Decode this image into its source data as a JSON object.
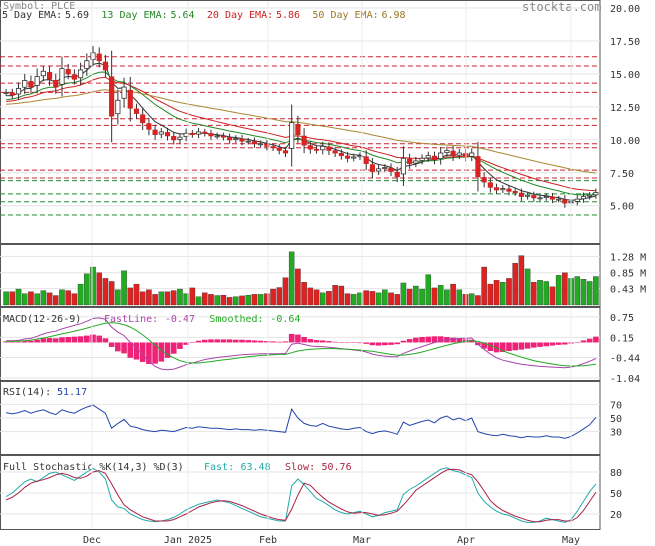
{
  "chart_data": [
    {
      "type": "candlestick",
      "panel": "price",
      "symbol_label": "Symbol: PLCE",
      "watermark": "stockta.com",
      "ema_legend": [
        {
          "label": "5 Day EMA:",
          "value": "5.69",
          "color": "#333333"
        },
        {
          "label": "13 Day EMA:",
          "value": "5.64",
          "color": "#228822"
        },
        {
          "label": "20 Day EMA:",
          "value": "5.86",
          "color": "#cc2222"
        },
        {
          "label": "50 Day EMA:",
          "value": "6.98",
          "color": "#997722"
        }
      ],
      "ylim": [
        2.4,
        20.0
      ],
      "y_ticks": [
        "20.00",
        "17.50",
        "15.00",
        "12.50",
        "10.00",
        "7.50",
        "5.00"
      ],
      "resistance_levels": [
        16.3,
        15.6,
        14.3,
        13.6,
        11.6,
        11.1,
        9.7,
        9.4,
        7.7,
        7.1
      ],
      "support_levels": [
        6.9,
        5.9,
        5.3,
        4.3
      ],
      "x_ticks": [
        "Dec",
        "Jan 2025",
        "Feb",
        "Mar",
        "Apr",
        "May"
      ],
      "close": [
        13.6,
        13.4,
        13.9,
        14.5,
        14.0,
        14.8,
        15.2,
        14.6,
        14.0,
        15.4,
        15.0,
        14.6,
        15.3,
        16.0,
        16.6,
        16.0,
        15.3,
        11.8,
        13.0,
        14.0,
        12.4,
        12.0,
        11.3,
        10.8,
        10.4,
        10.6,
        10.3,
        10.0,
        10.2,
        10.5,
        10.4,
        10.6,
        10.5,
        10.3,
        10.3,
        10.2,
        10.0,
        10.1,
        9.9,
        9.9,
        9.7,
        9.7,
        9.5,
        9.4,
        9.2,
        9.0,
        11.3,
        10.4,
        9.6,
        9.3,
        9.2,
        9.5,
        9.2,
        9.0,
        8.8,
        8.6,
        8.7,
        8.8,
        8.2,
        7.6,
        7.8,
        7.9,
        7.6,
        7.2,
        8.6,
        8.2,
        8.4,
        8.6,
        8.8,
        8.5,
        9.0,
        9.2,
        8.8,
        9.0,
        8.7,
        9.0,
        7.2,
        6.8,
        6.4,
        6.2,
        6.3,
        6.1,
        6.0,
        5.7,
        5.8,
        5.6,
        5.6,
        5.7,
        5.5,
        5.5,
        5.2,
        5.3,
        5.5,
        5.7,
        5.8,
        6.0
      ]
    },
    {
      "type": "bar",
      "panel": "volume",
      "y_ticks": [
        "1.28 M",
        "0.85 M",
        "0.43 M"
      ],
      "ylim": [
        0,
        1.5
      ],
      "values": [
        0.35,
        0.35,
        0.42,
        0.3,
        0.35,
        0.3,
        0.38,
        0.32,
        0.25,
        0.4,
        0.38,
        0.3,
        0.55,
        0.82,
        1.0,
        0.85,
        0.7,
        0.62,
        0.4,
        0.9,
        0.45,
        0.55,
        0.35,
        0.4,
        0.28,
        0.35,
        0.35,
        0.38,
        0.42,
        0.3,
        0.45,
        0.22,
        0.32,
        0.28,
        0.25,
        0.26,
        0.2,
        0.22,
        0.24,
        0.26,
        0.28,
        0.28,
        0.3,
        0.42,
        0.46,
        0.72,
        1.4,
        0.95,
        0.6,
        0.45,
        0.4,
        0.32,
        0.36,
        0.52,
        0.5,
        0.3,
        0.28,
        0.32,
        0.38,
        0.36,
        0.32,
        0.4,
        0.32,
        0.28,
        0.58,
        0.42,
        0.5,
        0.42,
        0.8,
        0.45,
        0.52,
        0.4,
        0.55,
        0.4,
        0.28,
        0.3,
        0.25,
        1.0,
        0.55,
        0.65,
        0.6,
        0.7,
        1.1,
        1.3,
        0.95,
        0.6,
        0.65,
        0.62,
        0.48,
        0.78,
        0.85,
        0.7,
        0.75,
        0.68,
        0.62,
        0.75
      ]
    },
    {
      "type": "line",
      "panel": "macd",
      "title": "MACD(12-26-9)",
      "legend": [
        {
          "label": "FastLine:",
          "value": "-0.47",
          "color": "#aa44aa"
        },
        {
          "label": "Smoothed:",
          "value": "-0.64",
          "color": "#22aa22"
        }
      ],
      "y_ticks": [
        "0.75",
        "0.15",
        "-0.44",
        "-1.04"
      ],
      "ylim": [
        -1.04,
        0.95
      ],
      "fast": [
        0.05,
        0.05,
        0.06,
        0.1,
        0.12,
        0.18,
        0.25,
        0.3,
        0.33,
        0.4,
        0.45,
        0.5,
        0.55,
        0.62,
        0.7,
        0.72,
        0.68,
        0.45,
        0.3,
        0.2,
        0.0,
        -0.15,
        -0.35,
        -0.55,
        -0.7,
        -0.78,
        -0.8,
        -0.78,
        -0.72,
        -0.65,
        -0.6,
        -0.55,
        -0.5,
        -0.47,
        -0.44,
        -0.42,
        -0.4,
        -0.38,
        -0.36,
        -0.35,
        -0.34,
        -0.33,
        -0.33,
        -0.33,
        -0.33,
        -0.32,
        -0.05,
        -0.02,
        -0.06,
        -0.1,
        -0.12,
        -0.12,
        -0.14,
        -0.16,
        -0.18,
        -0.2,
        -0.22,
        -0.24,
        -0.28,
        -0.34,
        -0.38,
        -0.4,
        -0.42,
        -0.42,
        -0.32,
        -0.25,
        -0.18,
        -0.12,
        -0.06,
        0.0,
        0.05,
        0.08,
        0.1,
        0.12,
        0.12,
        0.13,
        -0.05,
        -0.2,
        -0.34,
        -0.45,
        -0.52,
        -0.56,
        -0.6,
        -0.64,
        -0.66,
        -0.68,
        -0.7,
        -0.71,
        -0.72,
        -0.73,
        -0.74,
        -0.72,
        -0.68,
        -0.62,
        -0.55,
        -0.47
      ],
      "smoothed": [
        0.02,
        0.03,
        0.04,
        0.05,
        0.07,
        0.1,
        0.13,
        0.17,
        0.21,
        0.25,
        0.29,
        0.33,
        0.37,
        0.42,
        0.47,
        0.52,
        0.56,
        0.58,
        0.56,
        0.52,
        0.45,
        0.35,
        0.22,
        0.08,
        -0.08,
        -0.22,
        -0.35,
        -0.45,
        -0.53,
        -0.58,
        -0.6,
        -0.6,
        -0.58,
        -0.56,
        -0.53,
        -0.51,
        -0.49,
        -0.46,
        -0.44,
        -0.42,
        -0.4,
        -0.38,
        -0.37,
        -0.36,
        -0.35,
        -0.35,
        -0.3,
        -0.25,
        -0.22,
        -0.2,
        -0.19,
        -0.18,
        -0.18,
        -0.18,
        -0.19,
        -0.2,
        -0.21,
        -0.22,
        -0.24,
        -0.26,
        -0.29,
        -0.32,
        -0.35,
        -0.37,
        -0.37,
        -0.35,
        -0.32,
        -0.28,
        -0.23,
        -0.18,
        -0.13,
        -0.08,
        -0.04,
        0.0,
        0.03,
        0.05,
        0.03,
        -0.02,
        -0.09,
        -0.16,
        -0.24,
        -0.31,
        -0.37,
        -0.43,
        -0.48,
        -0.53,
        -0.57,
        -0.6,
        -0.63,
        -0.66,
        -0.68,
        -0.69,
        -0.69,
        -0.68,
        -0.66,
        -0.64
      ]
    },
    {
      "type": "line",
      "panel": "rsi",
      "title": "RSI(14):",
      "value_label": "51.17",
      "y_ticks": [
        "70",
        "50",
        "30"
      ],
      "ylim": [
        0,
        100
      ],
      "values": [
        58,
        56,
        58,
        61,
        57,
        60,
        62,
        58,
        55,
        62,
        59,
        57,
        62,
        66,
        69,
        63,
        57,
        35,
        42,
        48,
        38,
        36,
        33,
        31,
        30,
        32,
        31,
        30,
        33,
        36,
        35,
        37,
        36,
        35,
        35,
        34,
        33,
        34,
        33,
        33,
        32,
        33,
        32,
        31,
        30,
        29,
        63,
        50,
        42,
        39,
        38,
        42,
        38,
        36,
        34,
        33,
        35,
        36,
        30,
        27,
        30,
        31,
        29,
        26,
        44,
        39,
        42,
        45,
        47,
        43,
        50,
        53,
        47,
        50,
        46,
        50,
        30,
        27,
        25,
        24,
        26,
        24,
        23,
        21,
        23,
        22,
        22,
        24,
        22,
        22,
        20,
        23,
        28,
        34,
        40,
        51
      ]
    },
    {
      "type": "line",
      "panel": "stochastic",
      "title": "Full Stochastic %K(14,3) %D(3)",
      "legend": [
        {
          "label": "Fast:",
          "value": "63.48",
          "color": "#22aaaa"
        },
        {
          "label": "Slow:",
          "value": "50.76",
          "color": "#aa2244"
        }
      ],
      "y_ticks": [
        "80",
        "50",
        "20"
      ],
      "ylim": [
        0,
        100
      ],
      "fast": [
        45,
        50,
        58,
        66,
        70,
        66,
        72,
        78,
        80,
        76,
        72,
        68,
        74,
        80,
        85,
        80,
        70,
        40,
        30,
        28,
        20,
        16,
        12,
        10,
        9,
        10,
        12,
        15,
        20,
        26,
        30,
        34,
        36,
        38,
        40,
        38,
        36,
        32,
        28,
        24,
        20,
        16,
        14,
        12,
        10,
        10,
        60,
        70,
        62,
        52,
        42,
        38,
        32,
        26,
        22,
        20,
        22,
        24,
        20,
        16,
        18,
        22,
        24,
        26,
        48,
        55,
        60,
        66,
        72,
        78,
        84,
        86,
        82,
        80,
        76,
        72,
        50,
        38,
        30,
        24,
        20,
        18,
        14,
        10,
        8,
        8,
        10,
        14,
        12,
        10,
        8,
        12,
        24,
        38,
        52,
        63
      ],
      "slow": [
        40,
        44,
        50,
        58,
        64,
        67,
        69,
        72,
        76,
        78,
        76,
        72,
        71,
        74,
        80,
        82,
        78,
        63,
        47,
        33,
        26,
        21,
        16,
        13,
        10,
        10,
        10,
        12,
        16,
        20,
        25,
        30,
        33,
        36,
        38,
        39,
        38,
        35,
        32,
        28,
        24,
        20,
        17,
        14,
        12,
        11,
        27,
        47,
        64,
        61,
        52,
        44,
        37,
        32,
        27,
        23,
        21,
        22,
        22,
        20,
        18,
        19,
        21,
        24,
        33,
        43,
        54,
        60,
        66,
        72,
        78,
        83,
        84,
        83,
        79,
        76,
        66,
        53,
        39,
        31,
        25,
        21,
        17,
        14,
        11,
        9,
        9,
        11,
        12,
        12,
        10,
        10,
        15,
        25,
        38,
        51
      ]
    }
  ]
}
